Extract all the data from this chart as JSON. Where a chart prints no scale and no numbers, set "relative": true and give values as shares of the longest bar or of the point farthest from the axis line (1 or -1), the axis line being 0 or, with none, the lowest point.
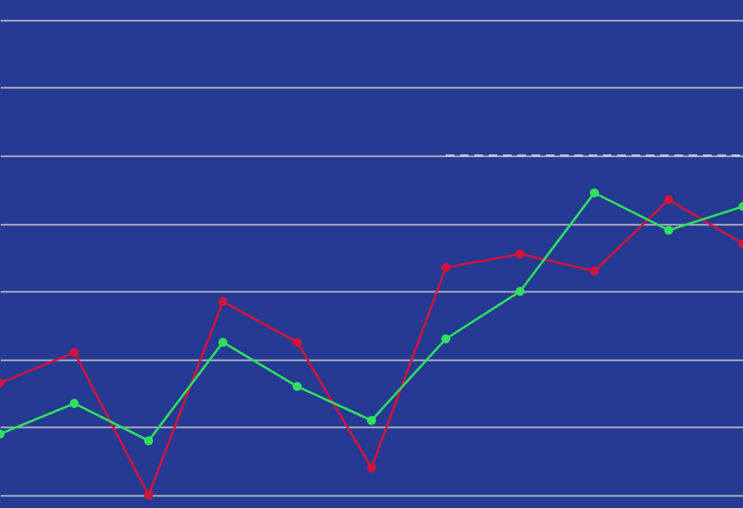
{
  "chart_data": {
    "type": "line",
    "relative": true,
    "categories": [
      null,
      null,
      null,
      null,
      null,
      null,
      null,
      null,
      null,
      null,
      null
    ],
    "series": [
      {
        "color": "#d0143c",
        "values": [
          0.33,
          0.42,
          0,
          0.57,
          0.45,
          0.08,
          0.67,
          0.71,
          0.66,
          0.87,
          0.74
        ]
      },
      {
        "color": "#2ee060",
        "values": [
          0.18,
          0.27,
          0.16,
          0.45,
          0.32,
          0.22,
          0.46,
          0.6,
          0.89,
          0.78,
          0.85
        ]
      },
      {
        "color": "#c8c8dc",
        "line_style": "dashed",
        "marker": "none",
        "values": [
          null,
          null,
          null,
          null,
          null,
          null,
          1,
          1,
          1,
          1,
          1
        ]
      }
    ],
    "marker": "circle",
    "grid": "y"
  }
}
